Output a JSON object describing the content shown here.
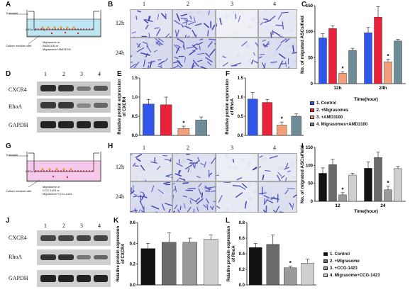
{
  "panels": {
    "A": "A",
    "B": "B",
    "C": "C",
    "D": "D",
    "E": "E",
    "F": "F",
    "G": "G",
    "H": "H",
    "I": "I",
    "J": "J",
    "K": "K",
    "L": "L"
  },
  "schematic_top": {
    "transwell": "Transwell",
    "ascs": "ASCs",
    "medium": "Culture medium with",
    "treatments": [
      "Migrasome or",
      "AMD3100 or",
      "Migrasome+AMD3100"
    ]
  },
  "schematic_bottom": {
    "transwell": "Transwell",
    "ascs": "ASCs",
    "medium": "Culture medium with",
    "treatments": [
      "Migrasome or",
      "CCG-1423 or",
      "Migrasome+CCG-1423"
    ]
  },
  "micro_cols": [
    "1",
    "2",
    "3",
    "4"
  ],
  "micro_rows": [
    "12h",
    "24h"
  ],
  "blot_lanes": [
    "1",
    "2",
    "3",
    "4"
  ],
  "blot_top_labels": [
    "CXCR4",
    "RhoA",
    "GAPDH"
  ],
  "blot_bottom_labels": [
    "CXCR4",
    "RhoA",
    "GAPDH"
  ],
  "legend_top": [
    "1. Control",
    "2. +Migrasomes",
    "3. +AMD3100",
    "4. Migrasomes+AMD3100"
  ],
  "legend_bottom": [
    "1. Control",
    "2. +Migrasome",
    "3. +CCG-1423",
    "4. Migrasome+CCG-1423"
  ],
  "colors": {
    "blue": "#2f56e8",
    "red": "#e8223a",
    "orange": "#f2a07a",
    "slate": "#6e8d96",
    "black": "#121212",
    "darkgray": "#6a6a6a",
    "midgray": "#9a9a9a",
    "lightgray": "#cfcfcf"
  },
  "chart_data": [
    {
      "panel": "C",
      "type": "bar",
      "categories": [
        "12h",
        "24h"
      ],
      "series": [
        {
          "name": "1. Control",
          "values": [
            88,
            98
          ],
          "errors": [
            8,
            10
          ]
        },
        {
          "name": "2. +Migrasomes",
          "values": [
            106,
            128
          ],
          "errors": [
            5,
            20
          ]
        },
        {
          "name": "3. +AMD3100",
          "values": [
            20,
            42
          ],
          "errors": [
            3,
            5
          ]
        },
        {
          "name": "4. Migrasomes+AMD3100",
          "values": [
            64,
            82
          ],
          "errors": [
            4,
            3
          ]
        }
      ],
      "ylabel": "No. of migrated ASCs/field",
      "xlabel": "Time(hour)",
      "ylim": [
        0,
        150
      ],
      "yticks": [
        0,
        50,
        100,
        150
      ],
      "annotations": [
        "*",
        "*"
      ]
    },
    {
      "panel": "E",
      "type": "bar",
      "categories": [
        "1",
        "2",
        "3",
        "4"
      ],
      "values": [
        0.82,
        0.8,
        0.18,
        0.4
      ],
      "errors": [
        0.12,
        0.2,
        0.06,
        0.08
      ],
      "ylabel": "Relative protein expression of CXCR4",
      "ylim": [
        0,
        1.5
      ],
      "yticks": [
        "0.0",
        "0.5",
        "1.0",
        "1.5"
      ],
      "annotations": [
        "*"
      ]
    },
    {
      "panel": "F",
      "type": "bar",
      "categories": [
        "1",
        "2",
        "3",
        "4"
      ],
      "values": [
        0.95,
        0.86,
        0.27,
        0.5
      ],
      "errors": [
        0.17,
        0.08,
        0.08,
        0.06
      ],
      "ylabel": "Relative protein expression of RhoA",
      "ylim": [
        0,
        1.5
      ],
      "yticks": [
        "0.0",
        "0.5",
        "1.0",
        "1.5"
      ],
      "annotations": [
        "*"
      ]
    },
    {
      "panel": "I",
      "type": "bar",
      "categories": [
        "12",
        "24"
      ],
      "series": [
        {
          "name": "1. Control",
          "values": [
            78,
            92
          ],
          "errors": [
            15,
            18
          ]
        },
        {
          "name": "2. +Migrasome",
          "values": [
            102,
            122
          ],
          "errors": [
            15,
            15
          ]
        },
        {
          "name": "3. +CCG-1423",
          "values": [
            18,
            32
          ],
          "errors": [
            6,
            10
          ]
        },
        {
          "name": "4. Migrasome+CCG-1423",
          "values": [
            73,
            91
          ],
          "errors": [
            5,
            6
          ]
        }
      ],
      "ylabel": "No. of migrated ASCs/field",
      "xlabel": "Time(hour)",
      "ylim": [
        0,
        150
      ],
      "yticks": [
        0,
        50,
        100,
        150
      ],
      "annotations": [
        "*",
        "*"
      ]
    },
    {
      "panel": "K",
      "type": "bar",
      "categories": [
        "1",
        "2",
        "3",
        "4"
      ],
      "values": [
        0.35,
        0.41,
        0.41,
        0.44
      ],
      "errors": [
        0.05,
        0.09,
        0.04,
        0.04
      ],
      "ylabel": "Relative protein expression of CXCR4",
      "ylim": [
        0,
        0.6
      ],
      "yticks": [
        "0.0",
        "0.2",
        "0.4",
        "0.6"
      ],
      "annotations": []
    },
    {
      "panel": "L",
      "type": "bar",
      "categories": [
        "1",
        "2",
        "3",
        "4"
      ],
      "values": [
        0.48,
        0.52,
        0.22,
        0.28
      ],
      "errors": [
        0.05,
        0.12,
        0.02,
        0.05
      ],
      "ylabel": "Relative protein expression of RhoA",
      "ylim": [
        0,
        0.8
      ],
      "yticks": [
        "0.0",
        "0.2",
        "0.4",
        "0.6",
        "0.8"
      ],
      "annotations": [
        "*"
      ]
    }
  ]
}
